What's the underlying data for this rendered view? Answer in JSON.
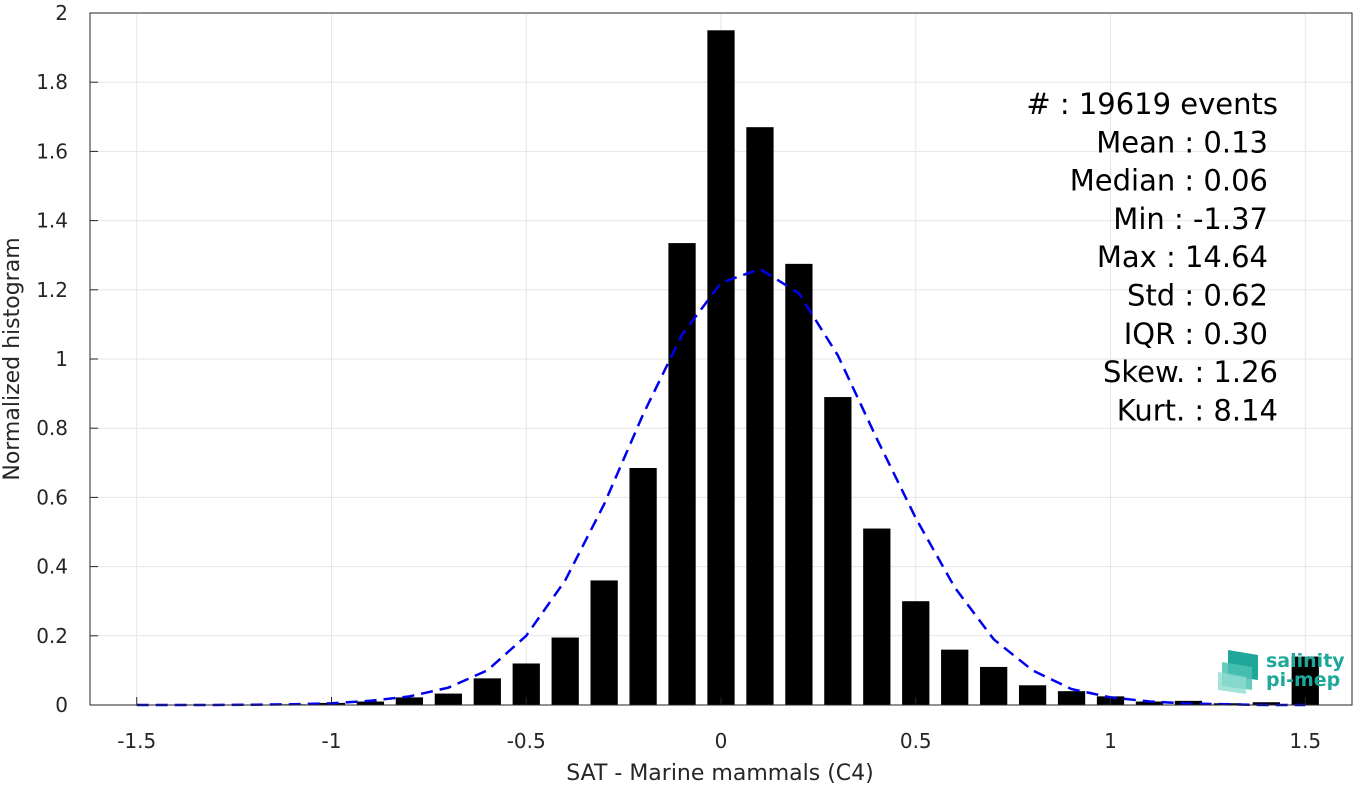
{
  "chart_data": {
    "type": "bar",
    "xlabel": "SAT - Marine mammals (C4)",
    "ylabel": "Normalized histogram",
    "xlim": [
      -1.62,
      1.62
    ],
    "ylim": [
      0,
      2
    ],
    "grid": true,
    "x_ticks": [
      "-1.5",
      "-1",
      "-0.5",
      "0",
      "0.5",
      "1",
      "1.5"
    ],
    "x_tick_values": [
      -1.5,
      -1,
      -0.5,
      0,
      0.5,
      1,
      1.5
    ],
    "y_ticks": [
      "0",
      "0.2",
      "0.4",
      "0.6",
      "0.8",
      "1",
      "1.2",
      "1.4",
      "1.6",
      "1.8",
      "2"
    ],
    "y_tick_values": [
      0,
      0.2,
      0.4,
      0.6,
      0.8,
      1,
      1.2,
      1.4,
      1.6,
      1.8,
      2
    ],
    "bar_width": 0.07,
    "bars": {
      "x": [
        -1.5,
        -1.4,
        -1.3,
        -1.2,
        -1.1,
        -1.0,
        -0.9,
        -0.8,
        -0.7,
        -0.6,
        -0.5,
        -0.4,
        -0.3,
        -0.2,
        -0.1,
        0.0,
        0.1,
        0.2,
        0.3,
        0.4,
        0.5,
        0.6,
        0.7,
        0.8,
        0.9,
        1.0,
        1.1,
        1.2,
        1.3,
        1.4,
        1.5
      ],
      "y": [
        0.001,
        0.001,
        0.001,
        0.001,
        0.002,
        0.006,
        0.01,
        0.022,
        0.033,
        0.077,
        0.12,
        0.195,
        0.36,
        0.685,
        1.335,
        1.95,
        1.67,
        1.275,
        0.89,
        0.51,
        0.3,
        0.16,
        0.11,
        0.057,
        0.04,
        0.025,
        0.01,
        0.012,
        0.005,
        0.008,
        0.14
      ]
    },
    "series": [
      {
        "type": "line",
        "style": "dashed",
        "color": "#0000ee",
        "x": [
          -1.5,
          -1.4,
          -1.3,
          -1.2,
          -1.1,
          -1.0,
          -0.9,
          -0.8,
          -0.7,
          -0.6,
          -0.5,
          -0.4,
          -0.3,
          -0.2,
          -0.1,
          0.0,
          0.1,
          0.2,
          0.3,
          0.4,
          0.5,
          0.6,
          0.7,
          0.8,
          0.9,
          1.0,
          1.1,
          1.2,
          1.3,
          1.4,
          1.5
        ],
        "y": [
          0.0,
          0.0,
          0.0,
          0.001,
          0.002,
          0.005,
          0.012,
          0.025,
          0.05,
          0.1,
          0.2,
          0.36,
          0.58,
          0.84,
          1.07,
          1.22,
          1.26,
          1.19,
          1.01,
          0.77,
          0.54,
          0.34,
          0.19,
          0.1,
          0.046,
          0.022,
          0.01,
          0.004,
          0.002,
          0.0,
          0.0
        ]
      }
    ],
    "bar_color": "#000000",
    "stats": [
      {
        "label": "#  : 19619 events"
      },
      {
        "label": "Mean : 0.13"
      },
      {
        "label": "Median : 0.06"
      },
      {
        "label": "Min : -1.37"
      },
      {
        "label": "Max : 14.64"
      },
      {
        "label": "Std : 0.62"
      },
      {
        "label": "IQR : 0.30"
      },
      {
        "label": "Skew. : 1.26"
      },
      {
        "label": "Kurt. : 8.14"
      }
    ]
  },
  "logo": {
    "line1": "salinity",
    "line2": "pi-mep",
    "color": "#1fa89a"
  }
}
